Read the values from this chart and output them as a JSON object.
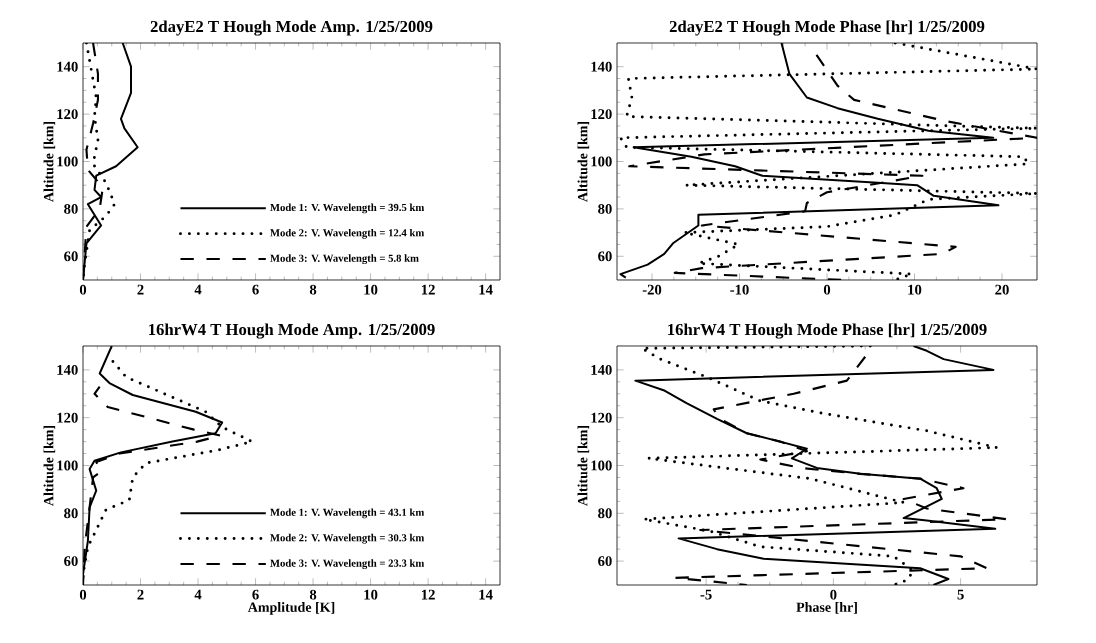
{
  "chart_data": [
    {
      "type": "line",
      "title": "2dayE2 T Hough Mode Amp. 1/25/2009",
      "ylabel": "Altitude [km]",
      "xlim": [
        0,
        14.5
      ],
      "ylim": [
        50,
        150
      ],
      "xticks": [
        0,
        2,
        4,
        6,
        8,
        10,
        12,
        14
      ],
      "yticks": [
        60,
        80,
        100,
        120,
        140
      ],
      "legend": "bottom right",
      "series": [
        {
          "name": "Mode 1: V. Wavelength = 39.5 km",
          "color": "#000000",
          "line_style": "solid",
          "x": [
            1.38,
            1.67,
            1.67,
            1.32,
            1.44,
            1.9,
            1.15,
            0.46,
            0.4,
            0.63,
            0.17,
            0.63,
            0.12,
            0
          ],
          "values": [
            150,
            140,
            129,
            118,
            114,
            106,
            98,
            94,
            88,
            85,
            82,
            73,
            65.5,
            50
          ]
        },
        {
          "name": "Mode 2: V. Wavelength = 12.4 km",
          "color": "#000000",
          "line_style": "dotted",
          "x": [
            0.12,
            0.46,
            0.4,
            0.52,
            0.35,
            0.8,
            1.1,
            0.8,
            0.23,
            0.06,
            0
          ],
          "values": [
            150,
            127,
            119,
            109,
            99,
            91,
            82,
            77,
            71,
            57,
            50
          ]
        },
        {
          "name": "Mode 3: V. Wavelength = 5.8 km",
          "color": "#000000",
          "line_style": "dashed",
          "x": [
            0.35,
            0.52,
            0.52,
            0.35,
            0.12,
            0.17,
            0.69,
            0.58,
            0.12,
            0
          ],
          "values": [
            150,
            137,
            126,
            116,
            105,
            96.5,
            89,
            80,
            72.5,
            50
          ]
        }
      ]
    },
    {
      "type": "line",
      "title": "2dayE2 T Hough Mode Phase [hr] 1/25/2009",
      "ylabel": "Altitude [km]",
      "xlim": [
        -24,
        24
      ],
      "ylim": [
        50,
        150
      ],
      "xticks": [
        -20,
        -10,
        0,
        10,
        20
      ],
      "yticks": [
        60,
        80,
        100,
        120,
        140
      ],
      "series": [
        {
          "color": "#000000",
          "line_style": "solid",
          "x": [
            -5.2,
            -4.3,
            -2.3,
            1.2,
            5.8,
            11.6,
            19,
            -22.1,
            -15.5,
            -10.5,
            -7.4,
            5.8,
            10.3,
            12.2,
            19.6,
            -14.7,
            -14.7,
            -17.6,
            -18.6,
            -20.5,
            -23.6,
            -23
          ],
          "values": [
            150,
            137,
            127,
            122.5,
            118,
            113,
            110,
            106,
            102,
            98,
            94,
            91,
            90,
            85.5,
            81.5,
            77.5,
            73,
            65.5,
            61,
            56.5,
            52.5,
            51
          ]
        },
        {
          "color": "#000000",
          "line_style": "dotted",
          "x": [
            7.8,
            24,
            -22.7,
            -22.3,
            -22.9,
            24,
            -23.6,
            -22.9,
            22.5,
            23,
            -16.1,
            24,
            11.6,
            7.8,
            0,
            -16.3,
            -10.1,
            -12.4,
            -14.7,
            9.7,
            7.8
          ],
          "values": [
            150,
            139,
            135,
            127,
            119,
            114,
            110,
            106,
            102,
            99,
            90,
            86.5,
            84,
            77.5,
            72.5,
            70,
            65,
            60,
            57,
            52.5,
            50
          ]
        },
        {
          "color": "#000000",
          "line_style": "dashed",
          "x": [
            -1.2,
            1.2,
            3.1,
            13.6,
            24,
            -14,
            -22.6,
            10.9,
            0,
            -2.3,
            -2.5,
            -14.3,
            14.7,
            13.2,
            -14.3,
            -17.4,
            1.9
          ],
          "values": [
            145,
            132,
            126,
            117,
            110,
            103,
            98,
            94,
            87,
            82.5,
            79,
            73,
            64,
            61,
            55,
            53,
            50
          ]
        }
      ]
    },
    {
      "type": "line",
      "title": "16hrW4 T Hough Mode Amp. 1/25/2009",
      "xlabel": "Amplitude [K]",
      "ylabel": "Altitude [km]",
      "xlim": [
        0,
        14.5
      ],
      "ylim": [
        50,
        150
      ],
      "xticks": [
        0,
        2,
        4,
        6,
        8,
        10,
        12,
        14
      ],
      "yticks": [
        60,
        80,
        100,
        120,
        140
      ],
      "legend": "bottom right",
      "series": [
        {
          "name": "Mode 1: V. Wavelength = 43.1 km",
          "color": "#000000",
          "line_style": "solid",
          "x": [
            1.0,
            0.58,
            0.92,
            1.73,
            3.92,
            4.84,
            4.61,
            3.11,
            1.32,
            0.4,
            0.23,
            0.46,
            0.23,
            0.17,
            0,
            0
          ],
          "values": [
            150,
            138.5,
            134.5,
            129.5,
            122.5,
            118,
            113.5,
            110,
            105.5,
            102,
            98.5,
            89.5,
            82.5,
            68.5,
            54.5,
            50
          ]
        },
        {
          "name": "Mode 2: V. Wavelength = 30.3 km",
          "color": "#000000",
          "line_style": "dotted",
          "x": [
            1.04,
            1.5,
            4.26,
            4.84,
            5.88,
            4.72,
            2.19,
            1.73,
            1.61,
            0.8,
            0.4,
            0.17,
            0,
            0
          ],
          "values": [
            143.5,
            137,
            122.5,
            116,
            110,
            106.5,
            101,
            95,
            85.5,
            81.5,
            71.5,
            66,
            54.5,
            50
          ]
        },
        {
          "name": "Mode 3: V. Wavelength = 23.3 km",
          "color": "#000000",
          "line_style": "dashed",
          "x": [
            0.58,
            0.4,
            0.86,
            3.86,
            4.78,
            3.97,
            1.27,
            0.46,
            0.63,
            0.35,
            0.23,
            0.06,
            0
          ],
          "values": [
            133,
            130,
            124.5,
            115,
            112.5,
            110,
            105,
            101.5,
            97.5,
            95,
            82.5,
            66,
            50
          ]
        }
      ]
    },
    {
      "type": "line",
      "title": "16hrW4 T Hough Mode Phase [hr] 1/25/2009",
      "xlabel": "Phase [hr]",
      "ylabel": "Altitude [km]",
      "xlim": [
        -8.5,
        8
      ],
      "ylim": [
        50,
        150
      ],
      "xticks": [
        -5,
        0,
        5
      ],
      "yticks": [
        60,
        80,
        100,
        120,
        140
      ],
      "series": [
        {
          "color": "#000000",
          "line_style": "solid",
          "x": [
            3.15,
            3.67,
            4.33,
            6.29,
            -7.78,
            -6.67,
            -5.75,
            -4.57,
            -3.4,
            -2.09,
            -1.04,
            -1.63,
            -0.65,
            1.05,
            3.41,
            4.06,
            4.26,
            2.76,
            3.67,
            6.36,
            -6.08,
            -4.57,
            -2.74,
            3.41,
            4.52,
            3.93
          ],
          "values": [
            150,
            148,
            144.5,
            140,
            135.5,
            131.5,
            126,
            119.5,
            113.5,
            110,
            107,
            103,
            99,
            96.5,
            94.5,
            90.5,
            86,
            78,
            77,
            73.5,
            69.5,
            65,
            61,
            57,
            52.5,
            50
          ]
        },
        {
          "color": "#000000",
          "line_style": "dotted",
          "x": [
            1.45,
            -7.52,
            -6.8,
            -4.97,
            -2.87,
            -0.25,
            3.67,
            6.42,
            -7.26,
            -4.7,
            -0.91,
            2.76,
            -7.45,
            -4.84,
            -2.87,
            2.36,
            3.15,
            2.89,
            2.36
          ],
          "values": [
            150,
            149,
            144.5,
            137,
            127,
            121.5,
            114.5,
            107.5,
            103,
            99.5,
            94.5,
            84.5,
            77.5,
            72.5,
            66,
            62,
            56,
            52,
            50
          ]
        },
        {
          "color": "#000000",
          "line_style": "dashed",
          "x": [
            1.25,
            0.53,
            -1.56,
            -4.7,
            -4.44,
            -3.4,
            -2.09,
            -1.04,
            -2.87,
            -1.3,
            1.05,
            3.41,
            5.11,
            2.76,
            3.67,
            6.82,
            -5.23,
            5,
            6.03,
            -6.21,
            -3.4
          ],
          "values": [
            145.5,
            135.5,
            130,
            123.5,
            119.5,
            113.5,
            110,
            106,
            102.5,
            99,
            96.5,
            94.5,
            90.5,
            86,
            82,
            77.5,
            73,
            62,
            57,
            53,
            50
          ]
        }
      ]
    }
  ]
}
